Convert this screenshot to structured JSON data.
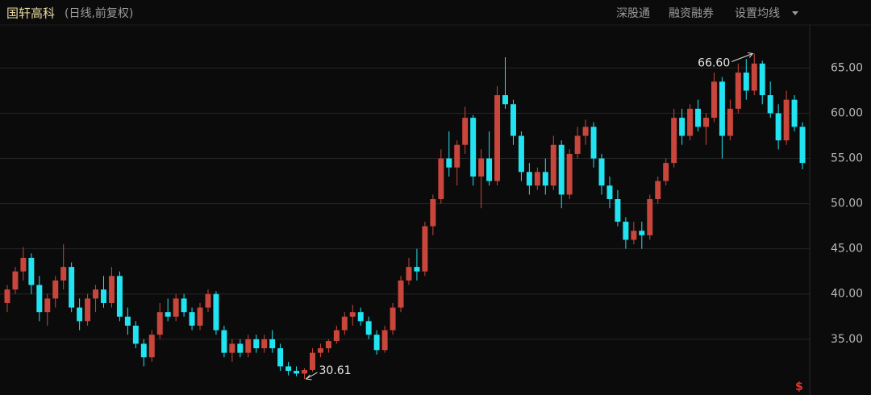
{
  "header": {
    "title": "国轩高科",
    "subtitle": "(日线,前复权)",
    "toolbar": [
      "深股通",
      "融资融券",
      "设置均线"
    ],
    "badge": "$"
  },
  "chart_data": {
    "type": "candlestick",
    "up_color": "#c8463c",
    "down_color": "#22e3f2",
    "grid": true,
    "ylim": [
      29.9,
      67.0
    ],
    "yticks": [
      {
        "value": 35,
        "label": "35.00"
      },
      {
        "value": 40,
        "label": "40.00"
      },
      {
        "value": 45,
        "label": "45.00"
      },
      {
        "value": 50,
        "label": "50.00"
      },
      {
        "value": 55,
        "label": "55.00"
      },
      {
        "value": 60,
        "label": "60.00"
      },
      {
        "value": 65,
        "label": "65.00"
      }
    ],
    "annotations": [
      {
        "value": 66.6,
        "label": "66.60"
      },
      {
        "value": 30.61,
        "label": "30.61"
      }
    ],
    "open": [
      39,
      40.5,
      42.5,
      44,
      41,
      38,
      39.5,
      41.5,
      43,
      38.5,
      37,
      39.5,
      40.5,
      39,
      42,
      37.5,
      36.5,
      34.5,
      33,
      35.5,
      38,
      37.5,
      39.5,
      38,
      36.5,
      38.5,
      40,
      36,
      33.5,
      34.5,
      33.5,
      35,
      34,
      35,
      34,
      32,
      31.5,
      31.2,
      31.6,
      33.5,
      34,
      34.8,
      36,
      37.5,
      38,
      37,
      35.5,
      33.8,
      36,
      38.5,
      41.5,
      43,
      42.5,
      47.5,
      50.5,
      55,
      54,
      56.5,
      59.5,
      53,
      55,
      52.5,
      62,
      61,
      57.5,
      53.5,
      52,
      53.5,
      52,
      56.5,
      51,
      55.5,
      57.5,
      58.5,
      55,
      52,
      50.5,
      48,
      46,
      47,
      46.5,
      50.5,
      52.5,
      54.5,
      59.5,
      57.5,
      60.5,
      58.5,
      59.5,
      63.5,
      57.5,
      60.5,
      64.5,
      62.5,
      65.5,
      62,
      60,
      57,
      61.5,
      58.5
    ],
    "high": [
      41,
      43,
      45.2,
      44.5,
      42,
      40,
      42,
      45.5,
      43.5,
      39.5,
      40,
      41,
      42,
      43,
      42.5,
      38.5,
      37,
      35,
      36,
      39,
      39.5,
      40,
      40,
      38.5,
      39,
      40.5,
      40.3,
      36.5,
      35,
      35,
      35.5,
      35.5,
      35.5,
      36,
      34.5,
      32.5,
      32,
      31.8,
      34,
      34.5,
      35,
      36.5,
      38,
      38.8,
      38.5,
      37.5,
      36,
      36.5,
      39,
      42,
      44,
      45,
      48,
      51,
      56,
      58,
      57,
      60.7,
      59.8,
      56,
      58,
      63,
      66.2,
      61.5,
      58,
      54.5,
      54,
      55,
      57.5,
      57,
      56,
      58.5,
      59.3,
      59,
      55.5,
      53,
      51.5,
      48.5,
      48,
      48,
      51,
      53,
      55,
      60.5,
      60.5,
      61,
      61.5,
      60,
      64.5,
      64,
      61.5,
      65.5,
      66,
      66.6,
      65.8,
      63.5,
      61,
      62.5,
      62,
      59
    ],
    "low": [
      38,
      40,
      41.5,
      40,
      37,
      36.5,
      38.5,
      40.5,
      38,
      36,
      36.5,
      38,
      38.5,
      38.5,
      37,
      35.5,
      34,
      32,
      32.5,
      35,
      37,
      37,
      37.5,
      36,
      36,
      38,
      35.5,
      33,
      32.5,
      33,
      33,
      33.5,
      33.5,
      33.5,
      31.5,
      31,
      30.9,
      30.61,
      31.4,
      33,
      33.5,
      34.5,
      35.5,
      36.5,
      36.5,
      35,
      33.3,
      33.5,
      35.5,
      38,
      41,
      41.5,
      42,
      46.5,
      50,
      53,
      52,
      55.5,
      52,
      49.5,
      52,
      52,
      60.5,
      56.5,
      52.5,
      51,
      51.5,
      51,
      51.5,
      49.5,
      50.5,
      55,
      56.5,
      54,
      51,
      49.5,
      47.5,
      45,
      45.5,
      45,
      46,
      50,
      52,
      54,
      56.5,
      57,
      58,
      56.5,
      59,
      55,
      57,
      60,
      61.5,
      62,
      61,
      59.5,
      56,
      56.5,
      58,
      53.8
    ],
    "close": [
      40.5,
      42.5,
      44,
      41,
      38,
      39.5,
      41.5,
      43,
      38.5,
      37,
      39.5,
      40.5,
      39,
      42,
      37.5,
      36.5,
      34.5,
      33,
      35.5,
      38,
      37.5,
      39.5,
      38,
      36.5,
      38.5,
      40,
      36,
      33.5,
      34.5,
      33.5,
      35,
      34,
      35,
      34,
      32,
      31.5,
      31.2,
      31.6,
      33.5,
      34,
      34.8,
      36,
      37.5,
      38,
      37,
      35.5,
      33.8,
      36,
      38.5,
      41.5,
      43,
      42.5,
      47.5,
      50.5,
      55,
      54,
      56.5,
      59.5,
      53,
      55,
      52.5,
      62,
      61,
      57.5,
      53.5,
      52,
      53.5,
      52,
      56.5,
      51,
      55.5,
      57.5,
      58.5,
      55,
      52,
      50.5,
      48,
      46,
      47,
      46.5,
      50.5,
      52.5,
      54.5,
      59.5,
      57.5,
      60.5,
      58.5,
      59.5,
      63.5,
      57.5,
      60.5,
      64.5,
      62.5,
      65.5,
      62,
      60,
      57,
      61.5,
      58.5,
      54.5
    ]
  }
}
